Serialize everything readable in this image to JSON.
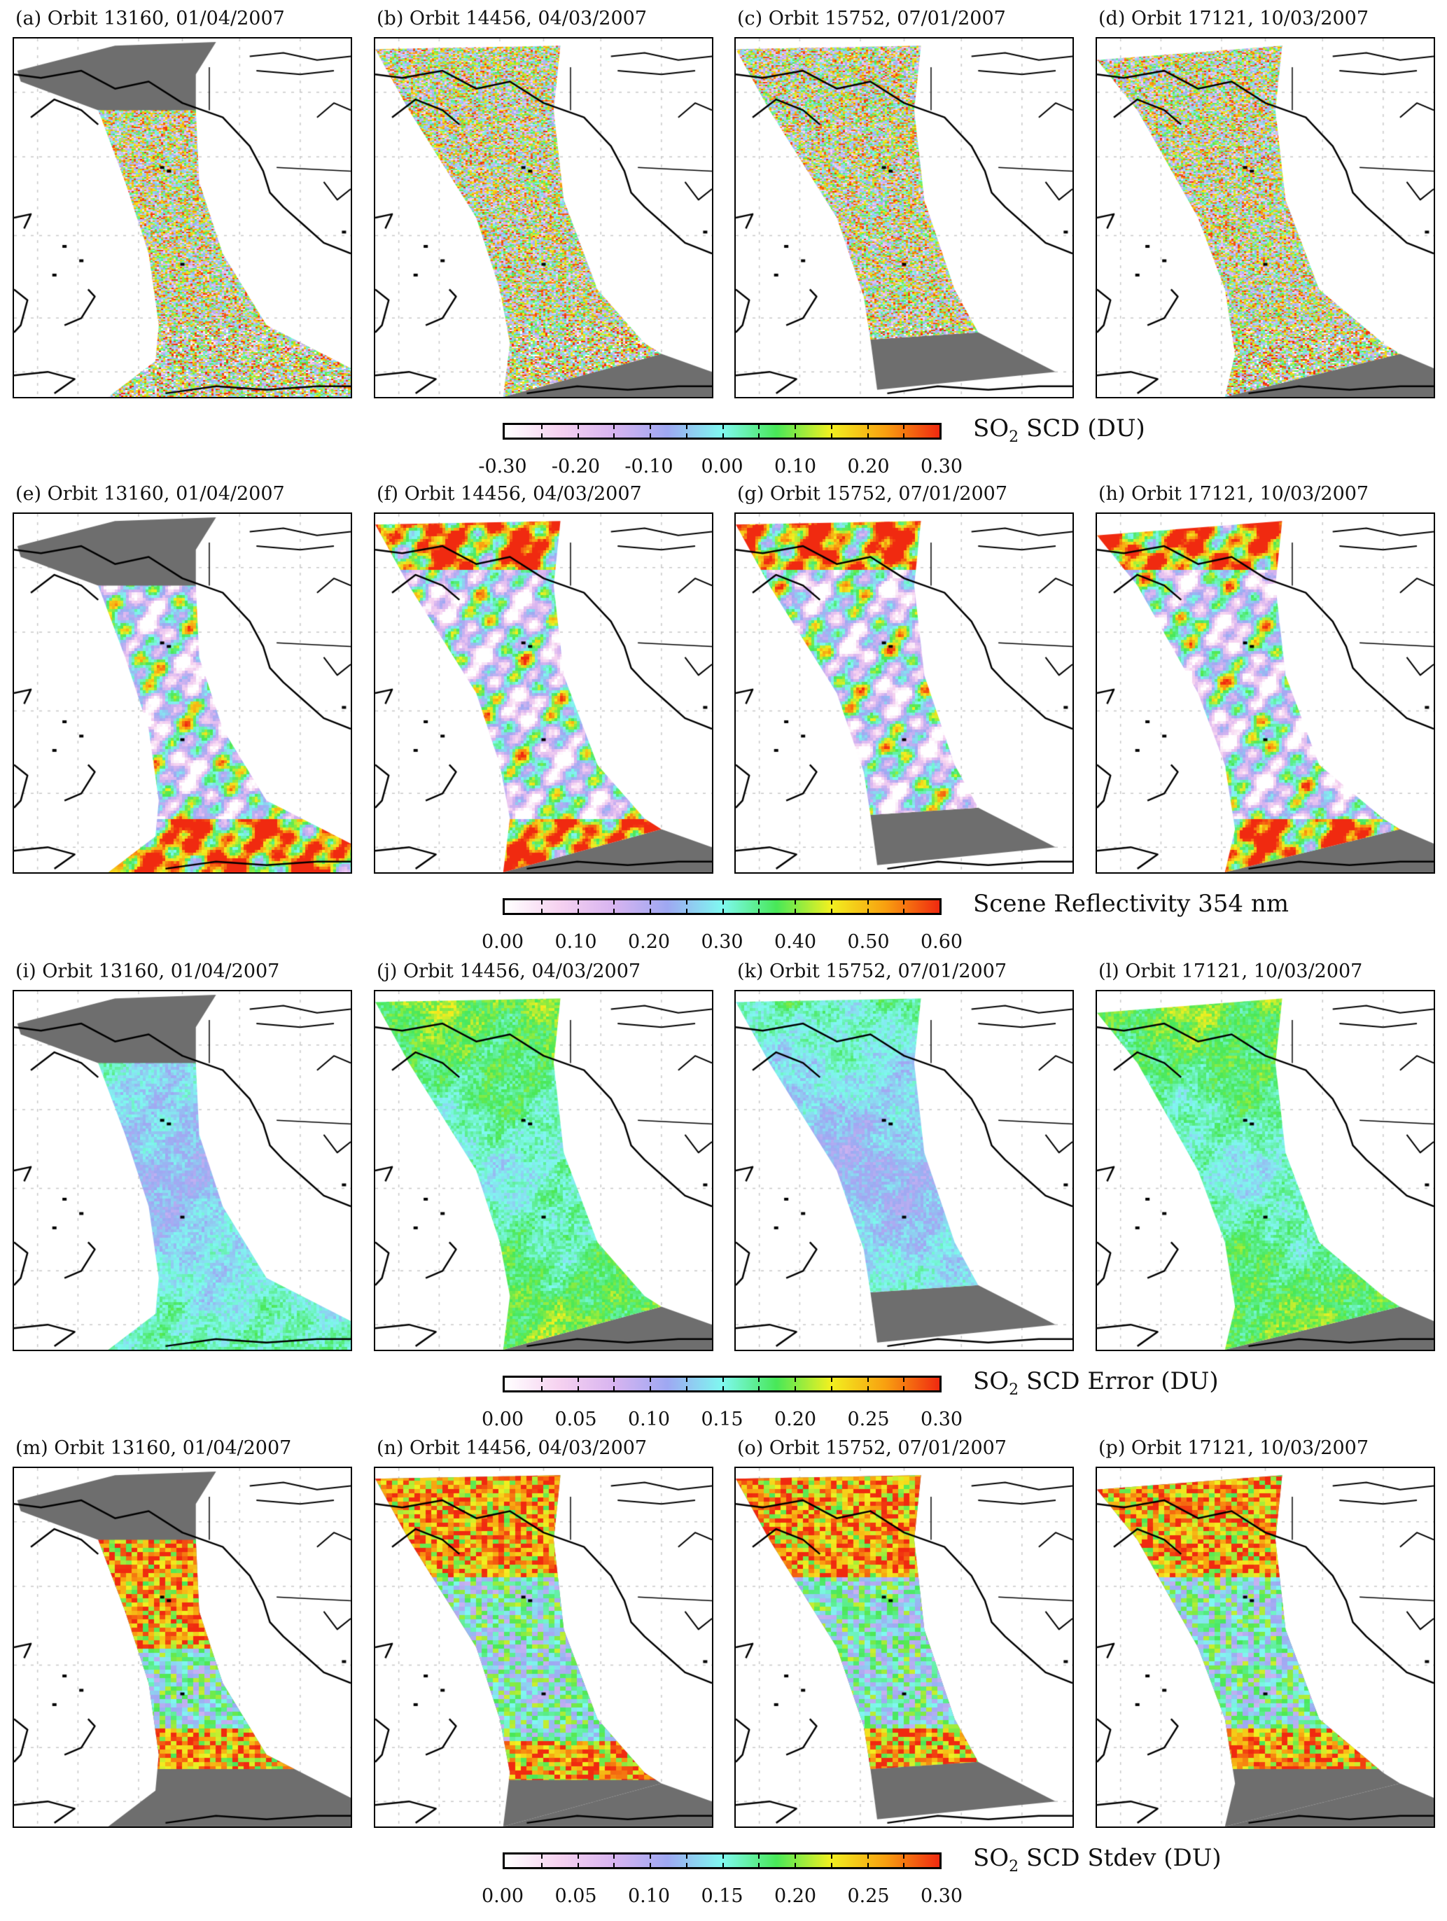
{
  "figure": {
    "rows": [
      {
        "panels": [
          {
            "label": "(a) Orbit 13160, 01/04/2007"
          },
          {
            "label": "(b) Orbit 14456, 04/03/2007"
          },
          {
            "label": "(c) Orbit 15752, 07/01/2007"
          },
          {
            "label": "(d) Orbit 17121, 10/03/2007"
          }
        ],
        "colorbar": {
          "label_main": "SO",
          "label_sub": "2",
          "label_rest": " SCD (DU)",
          "min": -0.3,
          "max": 0.3,
          "ticks": [
            "-0.30",
            "-0.20",
            "-0.10",
            "0.00",
            "0.10",
            "0.20",
            "0.30"
          ]
        }
      },
      {
        "panels": [
          {
            "label": "(e) Orbit 13160, 01/04/2007"
          },
          {
            "label": "(f) Orbit 14456, 04/03/2007"
          },
          {
            "label": "(g) Orbit 15752, 07/01/2007"
          },
          {
            "label": "(h) Orbit 17121, 10/03/2007"
          }
        ],
        "colorbar": {
          "label_main": "Scene Reflectivity 354 nm",
          "label_sub": "",
          "label_rest": "",
          "min": 0,
          "max": 0.6,
          "ticks": [
            "0.00",
            "0.10",
            "0.20",
            "0.30",
            "0.40",
            "0.50",
            "0.60"
          ]
        }
      },
      {
        "panels": [
          {
            "label": "(i) Orbit 13160, 01/04/2007"
          },
          {
            "label": "(j) Orbit 14456, 04/03/2007"
          },
          {
            "label": "(k) Orbit 15752, 07/01/2007"
          },
          {
            "label": "(l) Orbit 17121, 10/03/2007"
          }
        ],
        "colorbar": {
          "label_main": "SO",
          "label_sub": "2",
          "label_rest": " SCD Error (DU)",
          "min": 0,
          "max": 0.3,
          "ticks": [
            "0.00",
            "0.05",
            "0.10",
            "0.15",
            "0.20",
            "0.25",
            "0.30"
          ]
        }
      },
      {
        "panels": [
          {
            "label": "(m) Orbit 13160, 01/04/2007"
          },
          {
            "label": "(n) Orbit 14456, 04/03/2007"
          },
          {
            "label": "(o) Orbit 15752, 07/01/2007"
          },
          {
            "label": "(p) Orbit 17121, 10/03/2007"
          }
        ],
        "colorbar": {
          "label_main": "SO",
          "label_sub": "2",
          "label_rest": " SCD Stdev (DU)",
          "min": 0,
          "max": 0.3,
          "ticks": [
            "0.00",
            "0.05",
            "0.10",
            "0.15",
            "0.20",
            "0.25",
            "0.30"
          ]
        }
      }
    ],
    "colormap": [
      "#ffffff",
      "#f6d2f0",
      "#d8b4f0",
      "#9ea8f2",
      "#7ff8f0",
      "#48e858",
      "#f2f020",
      "#f8a010",
      "#f02a10"
    ],
    "no_data_color": "#6e6e6e",
    "coastline_color": "#000000"
  }
}
